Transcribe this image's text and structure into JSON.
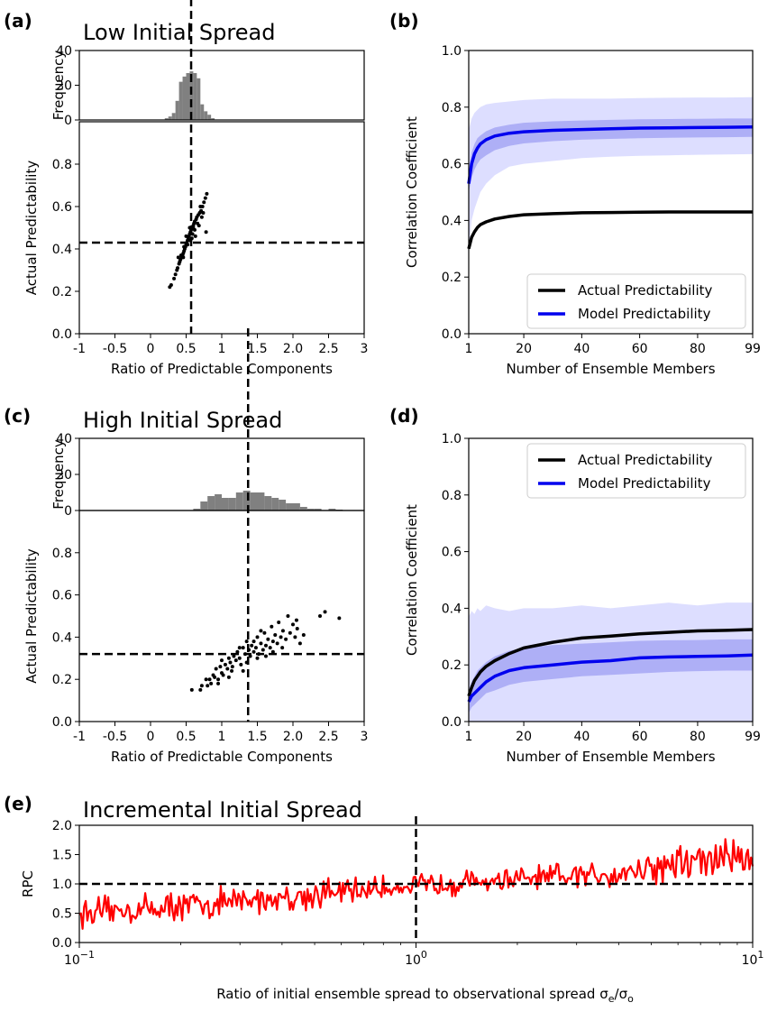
{
  "panels": {
    "a": {
      "label": "(a)",
      "title": "Low Initial Spread"
    },
    "b": {
      "label": "(b)"
    },
    "c": {
      "label": "(c)",
      "title": "High Initial Spread"
    },
    "d": {
      "label": "(d)"
    },
    "e": {
      "label": "(e)",
      "title": "Incremental Initial Spread"
    }
  },
  "colors": {
    "hist": "#808080",
    "actual": "#000000",
    "model": "#0000ee",
    "outer_band": "#d9daff",
    "inner_band": "#a8aaf5",
    "rpc": "#ff0000"
  },
  "chart_data": [
    {
      "id": "a-hist",
      "type": "bar",
      "ylabel": "Frequency",
      "ylim": [
        0,
        40
      ],
      "yticks": [
        "0",
        "20",
        "40"
      ],
      "xlim": [
        -1,
        3
      ],
      "bin_width": 0.05,
      "bins": [
        [
          0.2,
          1
        ],
        [
          0.25,
          2
        ],
        [
          0.3,
          4
        ],
        [
          0.35,
          11
        ],
        [
          0.4,
          22
        ],
        [
          0.45,
          25
        ],
        [
          0.5,
          27
        ],
        [
          0.55,
          28
        ],
        [
          0.6,
          27
        ],
        [
          0.65,
          24
        ],
        [
          0.7,
          9
        ],
        [
          0.75,
          5
        ],
        [
          0.8,
          3
        ],
        [
          0.85,
          1
        ]
      ]
    },
    {
      "id": "a-scatter",
      "type": "scatter",
      "xlabel": "Ratio of Predictable Components",
      "ylabel": "Actual Predictability",
      "xlim": [
        -1,
        3
      ],
      "ylim": [
        0,
        1
      ],
      "xticks": [
        "-1",
        "-0.5",
        "0",
        "0.5",
        "1",
        "1.5",
        "2.0",
        "2.5",
        "3"
      ],
      "yticks": [
        "0.0",
        "0.2",
        "0.4",
        "0.6",
        "0.8"
      ],
      "vline": 0.57,
      "hline": 0.43,
      "points": [
        [
          0.27,
          0.22
        ],
        [
          0.29,
          0.23
        ],
        [
          0.33,
          0.26
        ],
        [
          0.35,
          0.28
        ],
        [
          0.37,
          0.3
        ],
        [
          0.38,
          0.31
        ],
        [
          0.4,
          0.33
        ],
        [
          0.41,
          0.34
        ],
        [
          0.42,
          0.35
        ],
        [
          0.44,
          0.36
        ],
        [
          0.45,
          0.37
        ],
        [
          0.46,
          0.38
        ],
        [
          0.47,
          0.39
        ],
        [
          0.48,
          0.4
        ],
        [
          0.49,
          0.41
        ],
        [
          0.5,
          0.42
        ],
        [
          0.51,
          0.43
        ],
        [
          0.52,
          0.44
        ],
        [
          0.53,
          0.45
        ],
        [
          0.54,
          0.46
        ],
        [
          0.55,
          0.47
        ],
        [
          0.56,
          0.48
        ],
        [
          0.57,
          0.49
        ],
        [
          0.58,
          0.5
        ],
        [
          0.6,
          0.51
        ],
        [
          0.61,
          0.52
        ],
        [
          0.62,
          0.53
        ],
        [
          0.64,
          0.54
        ],
        [
          0.65,
          0.55
        ],
        [
          0.67,
          0.56
        ],
        [
          0.69,
          0.57
        ],
        [
          0.71,
          0.58
        ],
        [
          0.73,
          0.6
        ],
        [
          0.75,
          0.62
        ],
        [
          0.77,
          0.64
        ],
        [
          0.79,
          0.66
        ],
        [
          0.43,
          0.37
        ],
        [
          0.47,
          0.41
        ],
        [
          0.52,
          0.42
        ],
        [
          0.56,
          0.44
        ],
        [
          0.59,
          0.47
        ],
        [
          0.62,
          0.49
        ],
        [
          0.66,
          0.52
        ],
        [
          0.68,
          0.51
        ],
        [
          0.72,
          0.55
        ],
        [
          0.5,
          0.46
        ],
        [
          0.55,
          0.5
        ],
        [
          0.6,
          0.5
        ],
        [
          0.7,
          0.6
        ],
        [
          0.63,
          0.46
        ],
        [
          0.39,
          0.36
        ],
        [
          0.46,
          0.36
        ],
        [
          0.58,
          0.45
        ],
        [
          0.74,
          0.57
        ],
        [
          0.78,
          0.48
        ]
      ]
    },
    {
      "id": "b-lines",
      "type": "line",
      "xlabel": "Number of Ensemble Members",
      "ylabel": "Correlation Coefficient",
      "xlim": [
        1,
        99
      ],
      "ylim": [
        0,
        1
      ],
      "xticks": [
        "1",
        "20",
        "40",
        "60",
        "80",
        "99"
      ],
      "yticks": [
        "0.0",
        "0.2",
        "0.4",
        "0.6",
        "0.8",
        "1.0"
      ],
      "x": [
        1,
        2,
        3,
        4,
        5,
        7,
        10,
        15,
        20,
        30,
        40,
        50,
        60,
        70,
        80,
        90,
        99
      ],
      "series": [
        {
          "name": "Actual Predictability",
          "values": [
            0.3,
            0.34,
            0.36,
            0.375,
            0.385,
            0.395,
            0.405,
            0.414,
            0.42,
            0.424,
            0.427,
            0.428,
            0.429,
            0.43,
            0.43,
            0.43,
            0.43
          ]
        },
        {
          "name": "Model Predictability",
          "values": [
            0.53,
            0.6,
            0.635,
            0.655,
            0.67,
            0.685,
            0.698,
            0.708,
            0.713,
            0.718,
            0.721,
            0.724,
            0.726,
            0.727,
            0.728,
            0.729,
            0.73
          ]
        }
      ],
      "bands": [
        {
          "lower": [
            0.3,
            0.4,
            0.44,
            0.47,
            0.5,
            0.53,
            0.56,
            0.59,
            0.6,
            0.61,
            0.62,
            0.625,
            0.628,
            0.63,
            0.632,
            0.633,
            0.634
          ],
          "upper": [
            0.72,
            0.76,
            0.78,
            0.79,
            0.8,
            0.81,
            0.815,
            0.82,
            0.825,
            0.83,
            0.83,
            0.83,
            0.832,
            0.833,
            0.834,
            0.834,
            0.835
          ]
        },
        {
          "lower": [
            0.5,
            0.55,
            0.58,
            0.6,
            0.615,
            0.63,
            0.648,
            0.663,
            0.672,
            0.68,
            0.685,
            0.688,
            0.69,
            0.692,
            0.693,
            0.694,
            0.695
          ],
          "upper": [
            0.58,
            0.64,
            0.67,
            0.69,
            0.7,
            0.715,
            0.728,
            0.738,
            0.745,
            0.75,
            0.753,
            0.755,
            0.757,
            0.758,
            0.759,
            0.76,
            0.76
          ]
        }
      ],
      "legend": "lower-right"
    },
    {
      "id": "c-hist",
      "type": "bar",
      "ylabel": "Frequency",
      "ylim": [
        0,
        40
      ],
      "yticks": [
        "0",
        "20",
        "40"
      ],
      "xlim": [
        -1,
        3
      ],
      "bin_width": 0.1,
      "bins": [
        [
          0.6,
          1
        ],
        [
          0.7,
          5
        ],
        [
          0.8,
          8
        ],
        [
          0.9,
          9
        ],
        [
          1.0,
          7
        ],
        [
          1.1,
          7
        ],
        [
          1.2,
          10
        ],
        [
          1.3,
          11
        ],
        [
          1.4,
          10
        ],
        [
          1.5,
          10
        ],
        [
          1.6,
          8
        ],
        [
          1.7,
          7
        ],
        [
          1.8,
          6
        ],
        [
          1.9,
          4
        ],
        [
          2.0,
          4
        ],
        [
          2.1,
          2
        ],
        [
          2.2,
          1
        ],
        [
          2.3,
          1
        ],
        [
          2.5,
          1
        ],
        [
          2.6,
          0.5
        ]
      ]
    },
    {
      "id": "c-scatter",
      "type": "scatter",
      "xlabel": "Ratio of Predictable Components",
      "ylabel": "Actual Predictability",
      "xlim": [
        -1,
        3
      ],
      "ylim": [
        0,
        1
      ],
      "xticks": [
        "-1",
        "-0.5",
        "0",
        "0.5",
        "1",
        "1.5",
        "2.0",
        "2.5",
        "3"
      ],
      "yticks": [
        "0.0",
        "0.2",
        "0.4",
        "0.6",
        "0.8"
      ],
      "vline": 1.37,
      "hline": 0.32,
      "points": [
        [
          0.58,
          0.15
        ],
        [
          0.7,
          0.15
        ],
        [
          0.72,
          0.17
        ],
        [
          0.78,
          0.2
        ],
        [
          0.83,
          0.2
        ],
        [
          0.85,
          0.18
        ],
        [
          0.88,
          0.22
        ],
        [
          0.9,
          0.21
        ],
        [
          0.92,
          0.25
        ],
        [
          0.95,
          0.2
        ],
        [
          0.98,
          0.26
        ],
        [
          1.0,
          0.23
        ],
        [
          1.02,
          0.22
        ],
        [
          1.05,
          0.27
        ],
        [
          1.08,
          0.25
        ],
        [
          1.1,
          0.3
        ],
        [
          1.12,
          0.28
        ],
        [
          1.14,
          0.24
        ],
        [
          1.17,
          0.31
        ],
        [
          1.2,
          0.29
        ],
        [
          1.22,
          0.33
        ],
        [
          1.25,
          0.3
        ],
        [
          1.27,
          0.27
        ],
        [
          1.3,
          0.35
        ],
        [
          1.33,
          0.32
        ],
        [
          1.35,
          0.38
        ],
        [
          1.38,
          0.34
        ],
        [
          1.4,
          0.31
        ],
        [
          1.42,
          0.36
        ],
        [
          1.45,
          0.33
        ],
        [
          1.48,
          0.35
        ],
        [
          1.5,
          0.4
        ],
        [
          1.52,
          0.32
        ],
        [
          1.55,
          0.37
        ],
        [
          1.58,
          0.34
        ],
        [
          1.6,
          0.42
        ],
        [
          1.62,
          0.36
        ],
        [
          1.65,
          0.39
        ],
        [
          1.68,
          0.35
        ],
        [
          1.7,
          0.45
        ],
        [
          1.72,
          0.38
        ],
        [
          1.75,
          0.41
        ],
        [
          1.78,
          0.37
        ],
        [
          1.8,
          0.47
        ],
        [
          1.83,
          0.4
        ],
        [
          1.86,
          0.43
        ],
        [
          1.9,
          0.39
        ],
        [
          1.93,
          0.5
        ],
        [
          1.96,
          0.42
        ],
        [
          2.0,
          0.46
        ],
        [
          2.03,
          0.4
        ],
        [
          2.06,
          0.44
        ],
        [
          2.1,
          0.37
        ],
        [
          2.15,
          0.41
        ],
        [
          2.05,
          0.48
        ],
        [
          2.38,
          0.5
        ],
        [
          2.45,
          0.52
        ],
        [
          2.65,
          0.49
        ],
        [
          1.0,
          0.29
        ],
        [
          1.15,
          0.26
        ],
        [
          1.25,
          0.35
        ],
        [
          1.45,
          0.38
        ],
        [
          1.55,
          0.43
        ],
        [
          0.95,
          0.18
        ],
        [
          1.1,
          0.21
        ],
        [
          1.3,
          0.24
        ],
        [
          1.35,
          0.28
        ],
        [
          1.5,
          0.3
        ],
        [
          1.62,
          0.31
        ],
        [
          1.72,
          0.33
        ],
        [
          1.85,
          0.35
        ],
        [
          0.8,
          0.17
        ]
      ]
    },
    {
      "id": "d-lines",
      "type": "line",
      "xlabel": "Number of Ensemble Members",
      "ylabel": "Correlation Coefficient",
      "xlim": [
        1,
        99
      ],
      "ylim": [
        0,
        1
      ],
      "xticks": [
        "1",
        "20",
        "40",
        "60",
        "80",
        "99"
      ],
      "yticks": [
        "0.0",
        "0.2",
        "0.4",
        "0.6",
        "0.8",
        "1.0"
      ],
      "x": [
        1,
        2,
        3,
        4,
        5,
        7,
        10,
        15,
        20,
        30,
        40,
        50,
        60,
        70,
        80,
        90,
        99
      ],
      "series": [
        {
          "name": "Actual Predictability",
          "values": [
            0.09,
            0.12,
            0.145,
            0.16,
            0.175,
            0.195,
            0.215,
            0.24,
            0.26,
            0.28,
            0.295,
            0.302,
            0.31,
            0.315,
            0.32,
            0.322,
            0.325
          ]
        },
        {
          "name": "Model Predictability",
          "values": [
            0.07,
            0.09,
            0.1,
            0.11,
            0.12,
            0.14,
            0.16,
            0.18,
            0.19,
            0.2,
            0.21,
            0.215,
            0.225,
            0.228,
            0.23,
            0.232,
            0.235
          ]
        }
      ],
      "bands": [
        {
          "lower": [
            0.0,
            0.0,
            0.0,
            0.0,
            0.0,
            0.0,
            0.0,
            0.0,
            0.0,
            0.0,
            0.0,
            0.0,
            0.0,
            0.0,
            0.0,
            0.0,
            0.0
          ],
          "upper": [
            0.37,
            0.39,
            0.38,
            0.4,
            0.39,
            0.41,
            0.4,
            0.39,
            0.4,
            0.4,
            0.41,
            0.4,
            0.41,
            0.42,
            0.41,
            0.42,
            0.42
          ]
        },
        {
          "lower": [
            0.03,
            0.05,
            0.06,
            0.07,
            0.08,
            0.1,
            0.11,
            0.13,
            0.14,
            0.15,
            0.16,
            0.165,
            0.17,
            0.175,
            0.178,
            0.18,
            0.18
          ],
          "upper": [
            0.11,
            0.14,
            0.16,
            0.18,
            0.19,
            0.21,
            0.23,
            0.25,
            0.26,
            0.27,
            0.275,
            0.28,
            0.285,
            0.287,
            0.288,
            0.29,
            0.29
          ]
        }
      ],
      "legend": "upper-right"
    },
    {
      "id": "e-rpc",
      "type": "line",
      "xlabel_main": "Ratio of initial ensemble spread to observational spread σ",
      "xlabel_sub_e": "e",
      "xlabel_mid": "/σ",
      "xlabel_sub_o": "o",
      "ylabel": "RPC",
      "xscale": "log",
      "xlim": [
        0.1,
        10
      ],
      "ylim": [
        0,
        2
      ],
      "yticks": [
        "0.0",
        "0.5",
        "1.0",
        "1.5",
        "2.0"
      ],
      "xtick_base": "10",
      "xtick_exponents": [
        "−1",
        "0",
        "1"
      ],
      "vline": 1.0,
      "hline": 1.0,
      "trend_x": [
        0.1,
        0.3,
        1.0,
        3.0,
        10.0
      ],
      "trend_y": [
        0.5,
        0.7,
        0.98,
        1.12,
        1.5
      ],
      "noise_amplitude": [
        0.18,
        0.2,
        0.15,
        0.18,
        0.3
      ],
      "n_points": 420,
      "series_name": "RPC"
    }
  ]
}
